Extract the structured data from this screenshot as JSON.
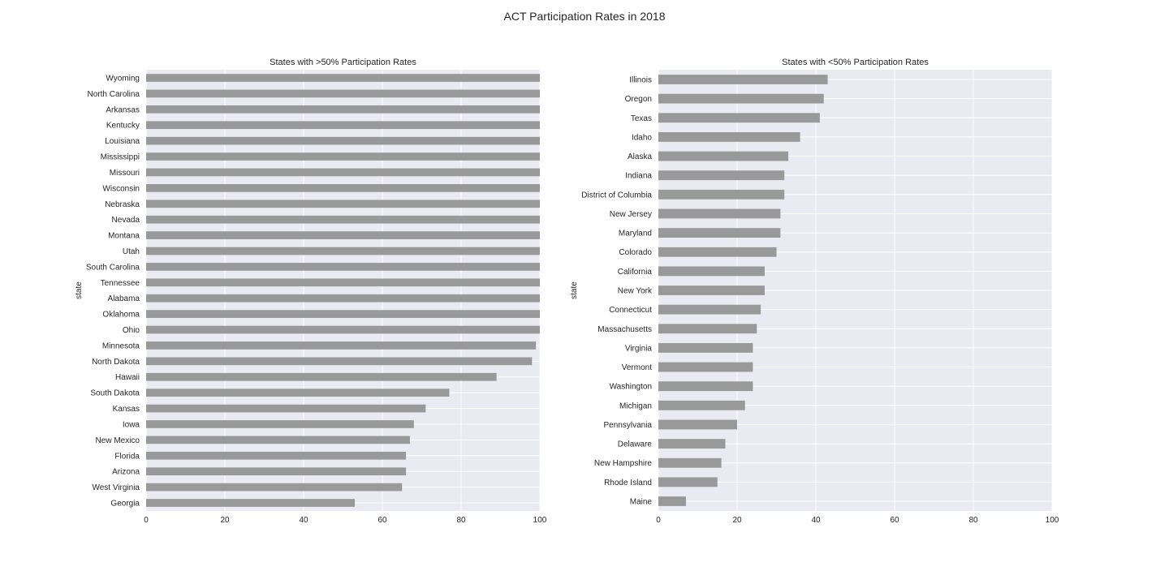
{
  "figure_title": "ACT Participation Rates in 2018",
  "chart_data": [
    {
      "type": "bar",
      "orientation": "horizontal",
      "title": "States with >50% Participation Rates",
      "xlabel": "",
      "ylabel": "state",
      "xlim": [
        0,
        100
      ],
      "xticks": [
        "0",
        "20",
        "40",
        "60",
        "80",
        "100"
      ],
      "grid": true,
      "bar_color": "#999999",
      "background_color": "#eaeaf2",
      "categories": [
        "Wyoming",
        "North Carolina",
        "Arkansas",
        "Kentucky",
        "Louisiana",
        "Mississippi",
        "Missouri",
        "Wisconsin",
        "Nebraska",
        "Nevada",
        "Montana",
        "Utah",
        "South Carolina",
        "Tennessee",
        "Alabama",
        "Oklahoma",
        "Ohio",
        "Minnesota",
        "North Dakota",
        "Hawaii",
        "South Dakota",
        "Kansas",
        "Iowa",
        "New Mexico",
        "Florida",
        "Arizona",
        "West Virginia",
        "Georgia"
      ],
      "values": [
        100,
        100,
        100,
        100,
        100,
        100,
        100,
        100,
        100,
        100,
        100,
        100,
        100,
        100,
        100,
        100,
        100,
        99,
        98,
        89,
        77,
        71,
        68,
        67,
        66,
        66,
        65,
        53
      ]
    },
    {
      "type": "bar",
      "orientation": "horizontal",
      "title": "States with <50% Participation Rates",
      "xlabel": "",
      "ylabel": "state",
      "xlim": [
        0,
        100
      ],
      "xticks": [
        "0",
        "20",
        "40",
        "60",
        "80",
        "100"
      ],
      "grid": true,
      "bar_color": "#999999",
      "background_color": "#eaeaf2",
      "categories": [
        "Illinois",
        "Oregon",
        "Texas",
        "Idaho",
        "Alaska",
        "Indiana",
        "District of Columbia",
        "New Jersey",
        "Maryland",
        "Colorado",
        "California",
        "New York",
        "Connecticut",
        "Massachusetts",
        "Virginia",
        "Vermont",
        "Washington",
        "Michigan",
        "Pennsylvania",
        "Delaware",
        "New Hampshire",
        "Rhode Island",
        "Maine"
      ],
      "values": [
        43,
        42,
        41,
        36,
        33,
        32,
        32,
        31,
        31,
        30,
        27,
        27,
        26,
        25,
        24,
        24,
        24,
        22,
        20,
        17,
        16,
        15,
        7
      ]
    }
  ]
}
